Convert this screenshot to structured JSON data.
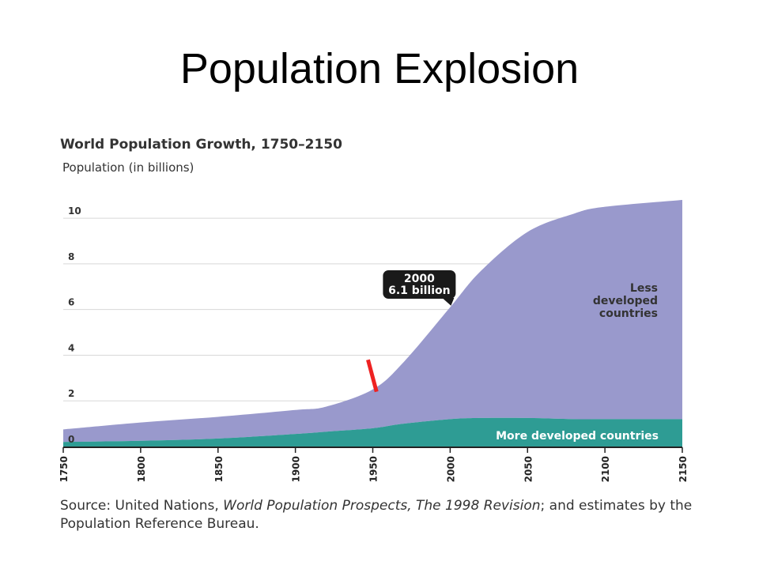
{
  "slide": {
    "title": "Population Explosion"
  },
  "chart_data": {
    "type": "area",
    "title": "World Population Growth, 1750–2150",
    "ylabel": "Population (in billions)",
    "xlabel": "",
    "xlim": [
      1750,
      2150
    ],
    "ylim": [
      0,
      10.8
    ],
    "x_ticks": [
      "1750",
      "1800",
      "1850",
      "1900",
      "1950",
      "2000",
      "2050",
      "2100",
      "2150"
    ],
    "y_ticks": [
      "0",
      "2",
      "4",
      "6",
      "8",
      "10"
    ],
    "grid": true,
    "stacked": true,
    "x": [
      1750,
      1800,
      1850,
      1900,
      1920,
      1950,
      1970,
      2000,
      2020,
      2050,
      2080,
      2100,
      2150
    ],
    "series": [
      {
        "name": "More developed countries",
        "color": "#2e9c94",
        "values": [
          0.2,
          0.25,
          0.35,
          0.55,
          0.65,
          0.8,
          1.0,
          1.2,
          1.25,
          1.25,
          1.2,
          1.2,
          1.2
        ]
      },
      {
        "name": "Less developed countries",
        "color": "#9999cc",
        "values": [
          0.55,
          0.8,
          0.95,
          1.05,
          1.1,
          1.7,
          2.7,
          4.9,
          6.45,
          8.15,
          9.0,
          9.3,
          9.6
        ]
      }
    ],
    "series_labels": {
      "less": [
        "Less",
        "developed",
        "countries"
      ],
      "more": "More developed countries"
    },
    "annotations": [
      {
        "x": 2000,
        "y": 6.1,
        "lines": [
          "2000",
          "6.1 billion"
        ]
      }
    ],
    "highlight": {
      "color": "#ee2222",
      "x_from": 1951,
      "y_from": 3.8,
      "x_to": 1956,
      "y_to": 2.4
    }
  },
  "source": {
    "prefix": "Source: United Nations, ",
    "work": "World Population Prospects, The 1998 Revision",
    "suffix": "; and estimates by the Population Reference Bureau."
  }
}
